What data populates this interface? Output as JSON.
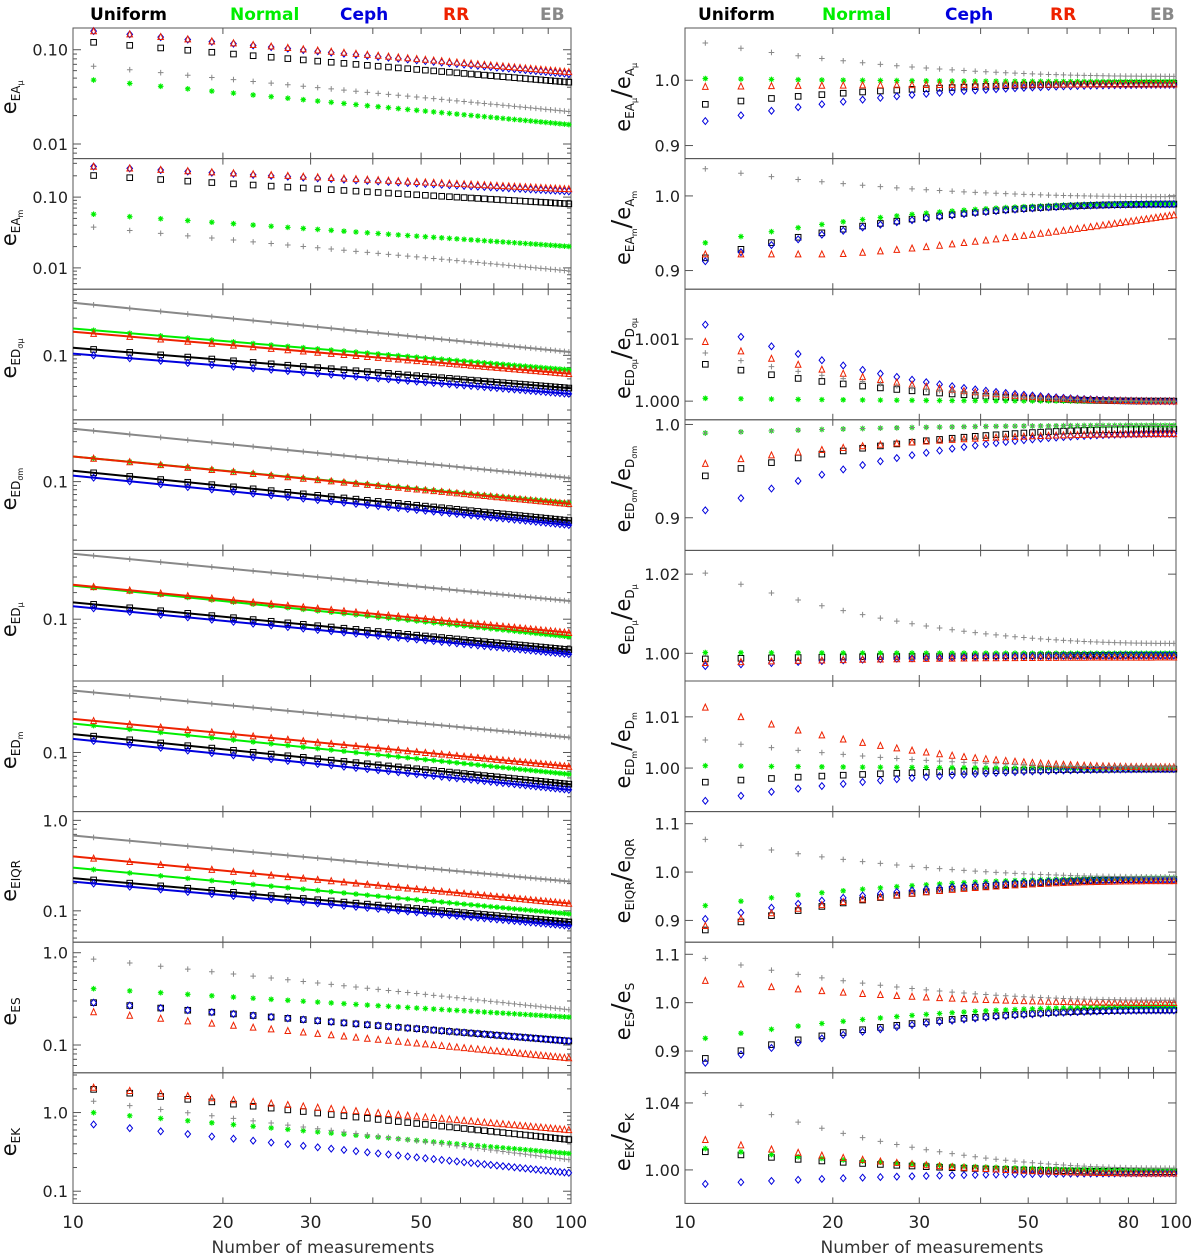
{
  "figure": {
    "legend": [
      {
        "label": "Uniform",
        "color": "#000000",
        "marker": "square"
      },
      {
        "label": "Normal",
        "color": "#00ee00",
        "marker": "asterisk"
      },
      {
        "label": "Ceph",
        "color": "#0000dd",
        "marker": "diamond"
      },
      {
        "label": "RR",
        "color": "#ee2200",
        "marker": "triangle"
      },
      {
        "label": "EB",
        "color": "#888888",
        "marker": "plus"
      }
    ],
    "xlabel": "Number of measurements",
    "x_ticks": [
      "10",
      "20",
      "30",
      "50",
      "80",
      "100"
    ]
  },
  "chart_data": [
    {
      "type": "scatter",
      "id": "L1",
      "col": "left",
      "xscale": "log",
      "yscale": "log",
      "xlim": [
        10,
        100
      ],
      "ylim": [
        0.007,
        0.17
      ],
      "ylabel_base": "e",
      "ylabel_sub": "EA",
      "ylabel_subsub": "μ",
      "y_ticks": [
        {
          "v": 0.1,
          "t": "0.10"
        },
        {
          "v": 0.01,
          "t": "0.01"
        }
      ],
      "series": [
        {
          "name": "Uniform",
          "y10": 0.125,
          "y100": 0.045,
          "line": false
        },
        {
          "name": "Normal",
          "y10": 0.05,
          "y100": 0.016,
          "line": false
        },
        {
          "name": "Ceph",
          "y10": 0.165,
          "y100": 0.055,
          "line": false
        },
        {
          "name": "RR",
          "y10": 0.165,
          "y100": 0.058,
          "line": false
        },
        {
          "name": "EB",
          "y10": 0.07,
          "y100": 0.022,
          "line": false
        }
      ]
    },
    {
      "type": "scatter",
      "id": "L2",
      "col": "left",
      "xscale": "log",
      "yscale": "log",
      "xlim": [
        10,
        100
      ],
      "ylim": [
        0.005,
        0.35
      ],
      "ylabel_base": "e",
      "ylabel_sub": "EA",
      "ylabel_subsub": "m",
      "y_ticks": [
        {
          "v": 0.1,
          "t": "0.10"
        },
        {
          "v": 0.01,
          "t": "0.01"
        }
      ],
      "series": [
        {
          "name": "Uniform",
          "y10": 0.21,
          "y100": 0.08,
          "line": false
        },
        {
          "name": "Normal",
          "y10": 0.06,
          "y100": 0.02,
          "line": false
        },
        {
          "name": "Ceph",
          "y10": 0.28,
          "y100": 0.12,
          "line": false
        },
        {
          "name": "RR",
          "y10": 0.28,
          "y100": 0.13,
          "line": false
        },
        {
          "name": "EB",
          "y10": 0.04,
          "y100": 0.009,
          "line": false
        }
      ]
    },
    {
      "type": "scatter",
      "id": "L3",
      "col": "left",
      "xscale": "log",
      "yscale": "log",
      "xlim": [
        10,
        100
      ],
      "ylim": [
        0.015,
        0.7
      ],
      "ylabel_base": "e",
      "ylabel_sub": "ED",
      "ylabel_subsub": "σμ",
      "y_ticks": [
        {
          "v": 0.1,
          "t": "0.1"
        }
      ],
      "series": [
        {
          "name": "Uniform",
          "y10": 0.125,
          "y100": 0.038,
          "line": true
        },
        {
          "name": "Normal",
          "y10": 0.22,
          "y100": 0.065,
          "line": true
        },
        {
          "name": "Ceph",
          "y10": 0.105,
          "y100": 0.032,
          "line": true
        },
        {
          "name": "RR",
          "y10": 0.2,
          "y100": 0.058,
          "line": true
        },
        {
          "name": "EB",
          "y10": 0.47,
          "y100": 0.11,
          "line": true
        }
      ]
    },
    {
      "type": "scatter",
      "id": "L4",
      "col": "left",
      "xscale": "log",
      "yscale": "log",
      "xlim": [
        10,
        100
      ],
      "ylim": [
        0.015,
        0.55
      ],
      "ylabel_base": "e",
      "ylabel_sub": "ED",
      "ylabel_subsub": "σm",
      "y_ticks": [
        {
          "v": 0.1,
          "t": "0.1"
        }
      ],
      "series": [
        {
          "name": "Uniform",
          "y10": 0.135,
          "y100": 0.034,
          "line": true
        },
        {
          "name": "Normal",
          "y10": 0.2,
          "y100": 0.055,
          "line": true
        },
        {
          "name": "Ceph",
          "y10": 0.118,
          "y100": 0.03,
          "line": true
        },
        {
          "name": "RR",
          "y10": 0.2,
          "y100": 0.054,
          "line": true
        },
        {
          "name": "EB",
          "y10": 0.43,
          "y100": 0.11,
          "line": true
        }
      ]
    },
    {
      "type": "scatter",
      "id": "L5",
      "col": "left",
      "xscale": "log",
      "yscale": "log",
      "xlim": [
        10,
        100
      ],
      "ylim": [
        0.02,
        0.6
      ],
      "ylabel_base": "e",
      "ylabel_sub": "ED",
      "ylabel_subsub": "μ",
      "y_ticks": [
        {
          "v": 0.1,
          "t": "0.1"
        }
      ],
      "series": [
        {
          "name": "Uniform",
          "y10": 0.155,
          "y100": 0.045,
          "line": true
        },
        {
          "name": "Normal",
          "y10": 0.24,
          "y100": 0.063,
          "line": true
        },
        {
          "name": "Ceph",
          "y10": 0.14,
          "y100": 0.04,
          "line": true
        },
        {
          "name": "RR",
          "y10": 0.245,
          "y100": 0.07,
          "line": true
        },
        {
          "name": "EB",
          "y10": 0.55,
          "y100": 0.16,
          "line": true
        }
      ]
    },
    {
      "type": "scatter",
      "id": "L6",
      "col": "left",
      "xscale": "log",
      "yscale": "log",
      "xlim": [
        10,
        100
      ],
      "ylim": [
        0.02,
        0.7
      ],
      "ylabel_base": "e",
      "ylabel_sub": "ED",
      "ylabel_subsub": "m",
      "y_ticks": [
        {
          "v": 0.1,
          "t": "0.1"
        }
      ],
      "series": [
        {
          "name": "Uniform",
          "y10": 0.165,
          "y100": 0.042,
          "line": true
        },
        {
          "name": "Normal",
          "y10": 0.22,
          "y100": 0.055,
          "line": true
        },
        {
          "name": "Ceph",
          "y10": 0.145,
          "y100": 0.036,
          "line": true
        },
        {
          "name": "RR",
          "y10": 0.25,
          "y100": 0.068,
          "line": true
        },
        {
          "name": "EB",
          "y10": 0.54,
          "y100": 0.15,
          "line": true
        }
      ]
    },
    {
      "type": "scatter",
      "id": "L7",
      "col": "left",
      "xscale": "log",
      "yscale": "log",
      "xlim": [
        10,
        100
      ],
      "ylim": [
        0.045,
        1.25
      ],
      "ylabel_base": "e",
      "ylabel_sub": "EIQR",
      "ylabel_subsub": "",
      "y_ticks": [
        {
          "v": 1.0,
          "t": "1.0"
        },
        {
          "v": 0.1,
          "t": "0.1"
        }
      ],
      "series": [
        {
          "name": "Uniform",
          "y10": 0.23,
          "y100": 0.075,
          "line": true
        },
        {
          "name": "Normal",
          "y10": 0.3,
          "y100": 0.092,
          "line": true
        },
        {
          "name": "Ceph",
          "y10": 0.21,
          "y100": 0.068,
          "line": true
        },
        {
          "name": "RR",
          "y10": 0.4,
          "y100": 0.12,
          "line": true
        },
        {
          "name": "EB",
          "y10": 0.68,
          "y100": 0.21,
          "line": true
        }
      ]
    },
    {
      "type": "scatter",
      "id": "L8",
      "col": "left",
      "xscale": "log",
      "yscale": "log",
      "xlim": [
        10,
        100
      ],
      "ylim": [
        0.05,
        1.3
      ],
      "ylabel_base": "e",
      "ylabel_sub": "ES",
      "ylabel_subsub": "",
      "y_ticks": [
        {
          "v": 1.0,
          "t": "1.0"
        },
        {
          "v": 0.1,
          "t": "0.1"
        }
      ],
      "series": [
        {
          "name": "Uniform",
          "y10": 0.3,
          "y100": 0.11,
          "line": false
        },
        {
          "name": "Normal",
          "y10": 0.42,
          "y100": 0.2,
          "line": false
        },
        {
          "name": "Ceph",
          "y10": 0.3,
          "y100": 0.11,
          "line": false
        },
        {
          "name": "RR",
          "y10": 0.24,
          "y100": 0.072,
          "line": false
        },
        {
          "name": "EB",
          "y10": 0.9,
          "y100": 0.24,
          "line": false
        }
      ]
    },
    {
      "type": "scatter",
      "id": "L9",
      "col": "left",
      "xscale": "log",
      "yscale": "log",
      "xlim": [
        10,
        100
      ],
      "ylim": [
        0.07,
        3.2
      ],
      "ylabel_base": "e",
      "ylabel_sub": "EK",
      "ylabel_subsub": "",
      "y_ticks": [
        {
          "v": 1.0,
          "t": "1.0"
        },
        {
          "v": 0.1,
          "t": "0.1"
        }
      ],
      "series": [
        {
          "name": "Uniform",
          "y10": 2.1,
          "y100": 0.45,
          "line": false
        },
        {
          "name": "Normal",
          "y10": 1.05,
          "y100": 0.3,
          "line": false
        },
        {
          "name": "Ceph",
          "y10": 0.75,
          "y100": 0.17,
          "line": false
        },
        {
          "name": "RR",
          "y10": 2.2,
          "y100": 0.6,
          "line": false
        },
        {
          "name": "EB",
          "y10": 1.5,
          "y100": 0.25,
          "line": false
        }
      ]
    },
    {
      "type": "scatter",
      "id": "R1",
      "col": "right",
      "xscale": "log",
      "yscale": "linear",
      "xlim": [
        10,
        100
      ],
      "ylim": [
        0.88,
        1.08
      ],
      "ylabel_num": "EA",
      "ylabel_num_sub": "μ",
      "ylabel_den": "A",
      "ylabel_den_sub": "μ",
      "y_ticks": [
        {
          "v": 1.0,
          "t": "1.0"
        },
        {
          "v": 0.9,
          "t": "0.9"
        }
      ],
      "series": [
        {
          "name": "Uniform",
          "y10": 0.96,
          "y100": 0.995
        },
        {
          "name": "Normal",
          "y10": 1.003,
          "y100": 0.998
        },
        {
          "name": "Ceph",
          "y10": 0.932,
          "y100": 0.993
        },
        {
          "name": "RR",
          "y10": 0.99,
          "y100": 0.994
        },
        {
          "name": "EB",
          "y10": 1.062,
          "y100": 1.006
        }
      ]
    },
    {
      "type": "scatter",
      "id": "R2",
      "col": "right",
      "xscale": "log",
      "yscale": "linear",
      "xlim": [
        10,
        100
      ],
      "ylim": [
        0.875,
        1.05
      ],
      "ylabel_num": "EA",
      "ylabel_num_sub": "m",
      "ylabel_den": "A",
      "ylabel_den_sub": "m",
      "y_ticks": [
        {
          "v": 1.0,
          "t": "1.0"
        },
        {
          "v": 0.9,
          "t": "0.9"
        }
      ],
      "series": [
        {
          "name": "Uniform",
          "y10": 0.91,
          "y100": 0.989
        },
        {
          "name": "Normal",
          "y10": 0.932,
          "y100": 0.99
        },
        {
          "name": "Ceph",
          "y10": 0.905,
          "y100": 0.989
        },
        {
          "name": "RR",
          "y10": 0.922,
          "y100": 0.975,
          "shape": "rr2"
        },
        {
          "name": "EB",
          "y10": 1.04,
          "y100": 0.999
        }
      ]
    },
    {
      "type": "scatter",
      "id": "R3",
      "col": "right",
      "xscale": "log",
      "yscale": "linear",
      "xlim": [
        10,
        100
      ],
      "ylim": [
        0.9997,
        1.0018
      ],
      "ylabel_num": "ED",
      "ylabel_num_sub": "σμ",
      "ylabel_den": "D",
      "ylabel_den_sub": "σμ",
      "y_ticks": [
        {
          "v": 1.001,
          "t": "1.001"
        },
        {
          "v": 1.0,
          "t": "1.000"
        }
      ],
      "series": [
        {
          "name": "Uniform",
          "y10": 1.00065,
          "y100": 1.0
        },
        {
          "name": "Normal",
          "y10": 1.00005,
          "y100": 1.0
        },
        {
          "name": "Ceph",
          "y10": 1.00135,
          "y100": 1.0
        },
        {
          "name": "RR",
          "y10": 1.00105,
          "y100": 1.0
        },
        {
          "name": "EB",
          "y10": 1.00085,
          "y100": 1.0
        }
      ]
    },
    {
      "type": "scatter",
      "id": "R4",
      "col": "right",
      "xscale": "log",
      "yscale": "linear",
      "xlim": [
        10,
        100
      ],
      "ylim": [
        0.865,
        1.005
      ],
      "ylabel_num": "ED",
      "ylabel_num_sub": "σm",
      "ylabel_den": "D",
      "ylabel_den_sub": "σm",
      "y_ticks": [
        {
          "v": 1.0,
          "t": "1.0"
        },
        {
          "v": 0.9,
          "t": "0.9"
        }
      ],
      "series": [
        {
          "name": "Uniform",
          "y10": 0.94,
          "y100": 0.995
        },
        {
          "name": "Normal",
          "y10": 0.99,
          "y100": 0.999
        },
        {
          "name": "Ceph",
          "y10": 0.9,
          "y100": 0.99
        },
        {
          "name": "RR",
          "y10": 0.955,
          "y100": 0.99
        },
        {
          "name": "EB",
          "y10": 0.99,
          "y100": 0.999
        }
      ]
    },
    {
      "type": "scatter",
      "id": "R5",
      "col": "right",
      "xscale": "log",
      "yscale": "linear",
      "xlim": [
        10,
        100
      ],
      "ylim": [
        0.993,
        1.026
      ],
      "ylabel_num": "ED",
      "ylabel_num_sub": "μ",
      "ylabel_den": "D",
      "ylabel_den_sub": "μ",
      "y_ticks": [
        {
          "v": 1.02,
          "t": "1.02"
        },
        {
          "v": 1.0,
          "t": "1.00"
        }
      ],
      "series": [
        {
          "name": "Uniform",
          "y10": 0.9985,
          "y100": 0.9995
        },
        {
          "name": "Normal",
          "y10": 1.0002,
          "y100": 1.0
        },
        {
          "name": "Ceph",
          "y10": 0.9965,
          "y100": 0.9995
        },
        {
          "name": "RR",
          "y10": 0.9975,
          "y100": 0.999
        },
        {
          "name": "EB",
          "y10": 1.022,
          "y100": 1.0025
        }
      ]
    },
    {
      "type": "scatter",
      "id": "R6",
      "col": "right",
      "xscale": "log",
      "yscale": "linear",
      "xlim": [
        10,
        100
      ],
      "ylim": [
        0.9915,
        1.017
      ],
      "ylabel_num": "ED",
      "ylabel_num_sub": "m",
      "ylabel_den": "D",
      "ylabel_den_sub": "m",
      "y_ticks": [
        {
          "v": 1.01,
          "t": "1.01"
        },
        {
          "v": 1.0,
          "t": "1.00"
        }
      ],
      "series": [
        {
          "name": "Uniform",
          "y10": 0.997,
          "y100": 0.9998
        },
        {
          "name": "Normal",
          "y10": 1.0005,
          "y100": 1.0
        },
        {
          "name": "Ceph",
          "y10": 0.993,
          "y100": 0.9998
        },
        {
          "name": "RR",
          "y10": 1.013,
          "y100": 1.0002
        },
        {
          "name": "EB",
          "y10": 1.006,
          "y100": 1.0002
        }
      ]
    },
    {
      "type": "scatter",
      "id": "R7",
      "col": "right",
      "xscale": "log",
      "yscale": "linear",
      "xlim": [
        10,
        100
      ],
      "ylim": [
        0.855,
        1.125
      ],
      "ylabel_num": "EIQR",
      "ylabel_num_sub": "",
      "ylabel_den": "IQR",
      "ylabel_den_sub": "",
      "y_ticks": [
        {
          "v": 1.1,
          "t": "1.1"
        },
        {
          "v": 1.0,
          "t": "1.0"
        },
        {
          "v": 0.9,
          "t": "0.9"
        }
      ],
      "series": [
        {
          "name": "Uniform",
          "y10": 0.87,
          "y100": 0.985
        },
        {
          "name": "Normal",
          "y10": 0.925,
          "y100": 0.988
        },
        {
          "name": "Ceph",
          "y10": 0.895,
          "y100": 0.985
        },
        {
          "name": "RR",
          "y10": 0.88,
          "y100": 0.982
        },
        {
          "name": "EB",
          "y10": 1.075,
          "y100": 0.99
        }
      ]
    },
    {
      "type": "scatter",
      "id": "R8",
      "col": "right",
      "xscale": "log",
      "yscale": "linear",
      "xlim": [
        10,
        100
      ],
      "ylim": [
        0.855,
        1.125
      ],
      "ylabel_num": "ES",
      "ylabel_num_sub": "",
      "ylabel_den": "S",
      "ylabel_den_sub": "",
      "y_ticks": [
        {
          "v": 1.1,
          "t": "1.1"
        },
        {
          "v": 1.0,
          "t": "1.0"
        },
        {
          "v": 0.9,
          "t": "0.9"
        }
      ],
      "series": [
        {
          "name": "Uniform",
          "y10": 0.875,
          "y100": 0.985
        },
        {
          "name": "Normal",
          "y10": 0.92,
          "y100": 0.992
        },
        {
          "name": "Ceph",
          "y10": 0.865,
          "y100": 0.984
        },
        {
          "name": "RR",
          "y10": 1.05,
          "y100": 1.0
        },
        {
          "name": "EB",
          "y10": 1.1,
          "y100": 1.005
        }
      ]
    },
    {
      "type": "scatter",
      "id": "R9",
      "col": "right",
      "xscale": "log",
      "yscale": "linear",
      "xlim": [
        10,
        100
      ],
      "ylim": [
        0.98,
        1.058
      ],
      "ylabel_num": "EK",
      "ylabel_num_sub": "",
      "ylabel_den": "K",
      "ylabel_den_sub": "",
      "y_ticks": [
        {
          "v": 1.04,
          "t": "1.04"
        },
        {
          "v": 1.0,
          "t": "1.00"
        }
      ],
      "series": [
        {
          "name": "Uniform",
          "y10": 1.012,
          "y100": 0.999
        },
        {
          "name": "Normal",
          "y10": 1.014,
          "y100": 1.0
        },
        {
          "name": "Ceph",
          "y10": 0.991,
          "y100": 0.998
        },
        {
          "name": "RR",
          "y10": 1.02,
          "y100": 0.998
        },
        {
          "name": "EB",
          "y10": 1.05,
          "y100": 1.001
        }
      ]
    }
  ]
}
